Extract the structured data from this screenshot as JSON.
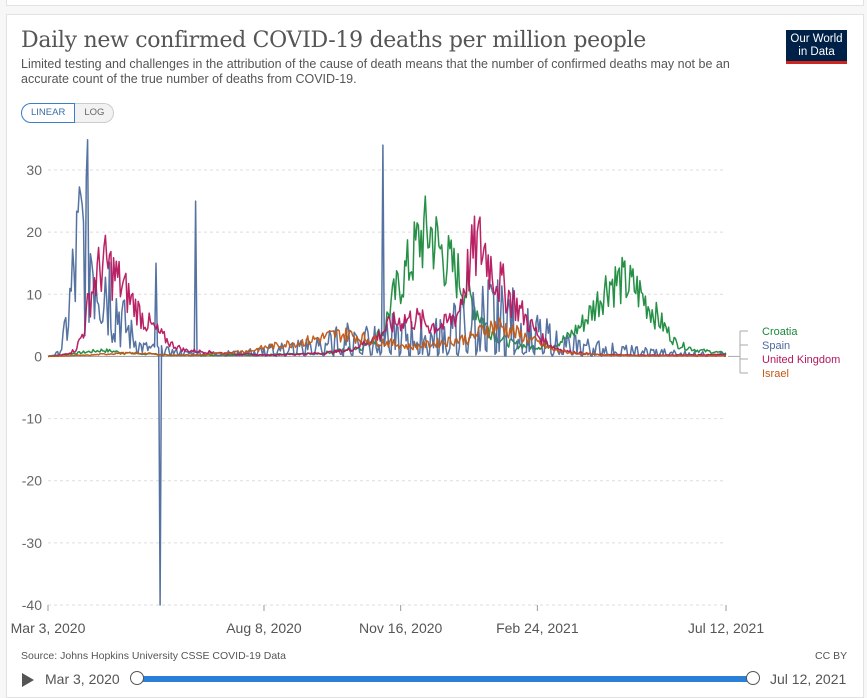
{
  "header": {
    "title": "Daily new confirmed COVID-19 deaths per million people",
    "subtitle": "Limited testing and challenges in the attribution of the cause of death means that the number of confirmed deaths may not be an accurate count of the true number of deaths from COVID-19.",
    "logo_line1": "Our World",
    "logo_line2": "in Data"
  },
  "controls": {
    "linear_label": "LINEAR",
    "log_label": "LOG"
  },
  "footer": {
    "source": "Source: Johns Hopkins University CSSE COVID-19 Data",
    "license": "CC BY"
  },
  "timeline": {
    "start_label": "Mar 3, 2020",
    "end_label": "Jul 12, 2021"
  },
  "chart_data": {
    "type": "line",
    "title": "Daily new confirmed COVID-19 deaths per million people",
    "xlabel": "",
    "ylabel": "",
    "ylim": [
      -40,
      35
    ],
    "yticks": [
      -40,
      -30,
      -20,
      -10,
      0,
      10,
      20,
      30
    ],
    "xrange_days": [
      0,
      496
    ],
    "xticks": [
      {
        "day": 0,
        "label": "Mar 3, 2020"
      },
      {
        "day": 158,
        "label": "Aug 8, 2020"
      },
      {
        "day": 258,
        "label": "Nov 16, 2020"
      },
      {
        "day": 358,
        "label": "Feb 24, 2021"
      },
      {
        "day": 496,
        "label": "Jul 12, 2021"
      }
    ],
    "legend_position": "right",
    "series": [
      {
        "name": "Croatia",
        "color": "#1a8a3c",
        "points": [
          [
            0,
            0
          ],
          [
            20,
            0.5
          ],
          [
            40,
            1
          ],
          [
            60,
            0.5
          ],
          [
            90,
            0.2
          ],
          [
            150,
            0.2
          ],
          [
            200,
            0.5
          ],
          [
            230,
            1.5
          ],
          [
            245,
            4
          ],
          [
            252,
            9
          ],
          [
            258,
            12
          ],
          [
            265,
            15
          ],
          [
            272,
            19
          ],
          [
            280,
            20
          ],
          [
            287,
            17
          ],
          [
            293,
            15
          ],
          [
            300,
            13
          ],
          [
            310,
            9
          ],
          [
            320,
            5
          ],
          [
            330,
            3
          ],
          [
            340,
            2
          ],
          [
            355,
            1.5
          ],
          [
            370,
            2
          ],
          [
            380,
            3
          ],
          [
            390,
            5
          ],
          [
            400,
            8
          ],
          [
            410,
            12
          ],
          [
            420,
            12
          ],
          [
            430,
            11
          ],
          [
            440,
            8
          ],
          [
            450,
            5
          ],
          [
            460,
            2
          ],
          [
            475,
            1
          ],
          [
            496,
            0.5
          ]
        ]
      },
      {
        "name": "Spain",
        "color": "#4c6a9c",
        "points": [
          [
            0,
            0
          ],
          [
            8,
            0.5
          ],
          [
            12,
            3
          ],
          [
            16,
            8
          ],
          [
            20,
            14
          ],
          [
            24,
            18
          ],
          [
            28,
            19
          ],
          [
            32,
            17
          ],
          [
            36,
            16
          ],
          [
            40,
            14
          ],
          [
            44,
            12
          ],
          [
            50,
            8
          ],
          [
            56,
            5
          ],
          [
            62,
            3
          ],
          [
            68,
            1.5
          ],
          [
            80,
            1
          ],
          [
            100,
            0.5
          ],
          [
            120,
            0.5
          ],
          [
            140,
            0.5
          ],
          [
            160,
            1
          ],
          [
            180,
            1.5
          ],
          [
            200,
            2
          ],
          [
            220,
            3
          ],
          [
            240,
            4
          ],
          [
            260,
            3.5
          ],
          [
            280,
            3
          ],
          [
            300,
            5
          ],
          [
            320,
            7
          ],
          [
            340,
            6
          ],
          [
            355,
            4
          ],
          [
            370,
            3
          ],
          [
            380,
            2
          ],
          [
            400,
            1.5
          ],
          [
            420,
            1
          ],
          [
            440,
            0.8
          ],
          [
            460,
            0.6
          ],
          [
            480,
            0.4
          ],
          [
            496,
            0.3
          ]
        ]
      },
      {
        "name": "United Kingdom",
        "color": "#b5175e",
        "points": [
          [
            0,
            0
          ],
          [
            10,
            0.2
          ],
          [
            20,
            1
          ],
          [
            26,
            4
          ],
          [
            30,
            9
          ],
          [
            34,
            12
          ],
          [
            40,
            15
          ],
          [
            46,
            14
          ],
          [
            52,
            12
          ],
          [
            58,
            10
          ],
          [
            64,
            8
          ],
          [
            70,
            6
          ],
          [
            80,
            4
          ],
          [
            90,
            2
          ],
          [
            100,
            1
          ],
          [
            130,
            0.5
          ],
          [
            160,
            0.2
          ],
          [
            200,
            0.5
          ],
          [
            220,
            1
          ],
          [
            240,
            3
          ],
          [
            250,
            5
          ],
          [
            260,
            6
          ],
          [
            270,
            6
          ],
          [
            280,
            5
          ],
          [
            290,
            5
          ],
          [
            300,
            7
          ],
          [
            305,
            12
          ],
          [
            310,
            16
          ],
          [
            315,
            18
          ],
          [
            320,
            17
          ],
          [
            325,
            14
          ],
          [
            330,
            12
          ],
          [
            340,
            9
          ],
          [
            350,
            6
          ],
          [
            360,
            3
          ],
          [
            370,
            1.5
          ],
          [
            380,
            0.8
          ],
          [
            400,
            0.3
          ],
          [
            430,
            0.2
          ],
          [
            460,
            0.2
          ],
          [
            496,
            0.3
          ]
        ]
      },
      {
        "name": "Israel",
        "color": "#c05917",
        "points": [
          [
            0,
            0
          ],
          [
            30,
            0.2
          ],
          [
            50,
            0.5
          ],
          [
            70,
            0.5
          ],
          [
            90,
            0.2
          ],
          [
            110,
            0.2
          ],
          [
            130,
            0.5
          ],
          [
            150,
            1
          ],
          [
            160,
            1.5
          ],
          [
            175,
            2
          ],
          [
            190,
            2.5
          ],
          [
            200,
            3
          ],
          [
            210,
            3.5
          ],
          [
            220,
            3.5
          ],
          [
            230,
            3
          ],
          [
            240,
            2.5
          ],
          [
            255,
            2
          ],
          [
            265,
            1.5
          ],
          [
            280,
            2
          ],
          [
            295,
            2.5
          ],
          [
            310,
            3
          ],
          [
            320,
            4.5
          ],
          [
            330,
            5
          ],
          [
            340,
            4
          ],
          [
            350,
            3
          ],
          [
            360,
            2
          ],
          [
            370,
            1
          ],
          [
            385,
            0.5
          ],
          [
            400,
            0.3
          ],
          [
            430,
            0.1
          ],
          [
            460,
            0.1
          ],
          [
            496,
            0.1
          ]
        ]
      }
    ],
    "spikes": [
      {
        "series": "Spain",
        "day": 79,
        "value": 15
      },
      {
        "series": "Spain",
        "day": 82,
        "value": -40
      },
      {
        "series": "Spain",
        "day": 108,
        "value": 25
      },
      {
        "series": "Spain",
        "day": 245,
        "value": 34
      }
    ]
  }
}
